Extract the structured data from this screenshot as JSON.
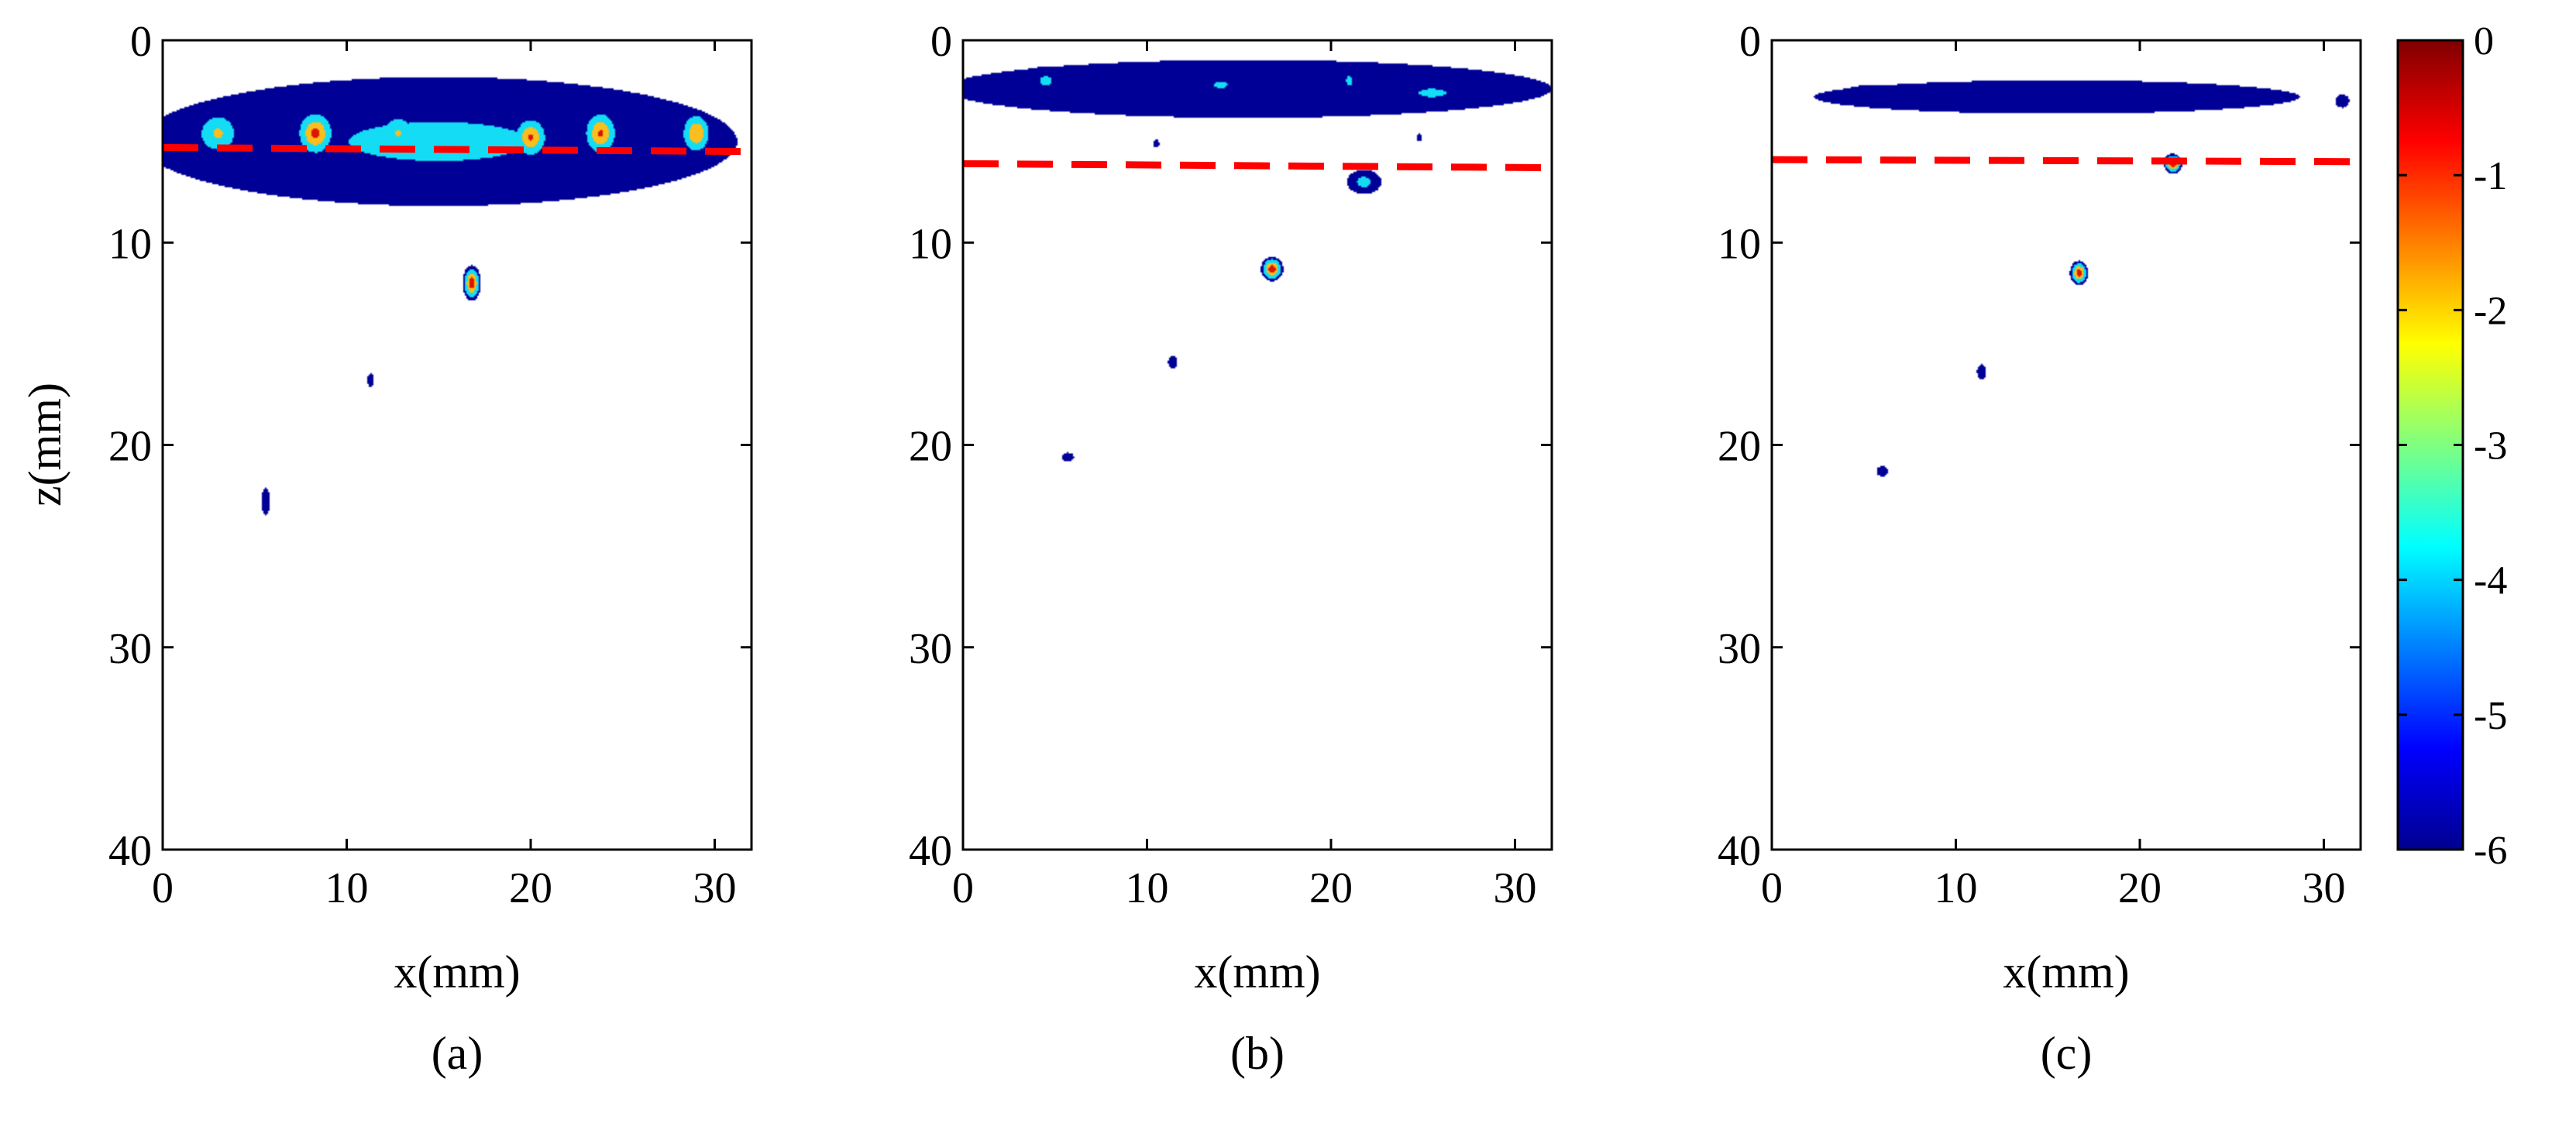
{
  "chart_data": [
    {
      "type": "heatmap",
      "panel": "(a)",
      "xlabel": "x(mm)",
      "ylabel": "z(mm)",
      "xlim": [
        0,
        32
      ],
      "ylim": [
        0,
        40
      ],
      "y_reversed": true,
      "xticks": [
        "0",
        "10",
        "20",
        "30"
      ],
      "yticks": [
        "0",
        "10",
        "20",
        "30",
        "40"
      ],
      "clim": [
        -6,
        0
      ],
      "dashed_line": {
        "color": "#ff0000",
        "x": [
          0,
          32
        ],
        "z": [
          5.3,
          5.5
        ]
      },
      "contour_levels": [
        -6,
        -4,
        -2,
        -1
      ],
      "blobs": [
        {
          "x": 15.0,
          "z": 5.0,
          "wx": 29.5,
          "wz": 5.8,
          "peak": -3.8
        },
        {
          "x": 3.0,
          "z": 4.6,
          "wx": 2.2,
          "wz": 2.0,
          "peak": -1.8
        },
        {
          "x": 8.3,
          "z": 4.6,
          "wx": 2.0,
          "wz": 2.2,
          "peak": -0.8
        },
        {
          "x": 12.8,
          "z": 4.6,
          "wx": 1.8,
          "wz": 1.8,
          "peak": -1.9
        },
        {
          "x": 20.0,
          "z": 4.8,
          "wx": 1.8,
          "wz": 2.0,
          "peak": -0.9
        },
        {
          "x": 23.8,
          "z": 4.6,
          "wx": 1.8,
          "wz": 2.2,
          "peak": -0.9
        },
        {
          "x": 29.0,
          "z": 4.6,
          "wx": 1.6,
          "wz": 2.0,
          "peak": -1.0
        },
        {
          "x": 16.8,
          "z": 12.0,
          "wx": 0.9,
          "wz": 1.6,
          "peak": -0.5
        },
        {
          "x": 11.3,
          "z": 16.8,
          "wx": 0.3,
          "wz": 0.6,
          "peak": -5.5
        },
        {
          "x": 5.6,
          "z": 22.8,
          "wx": 0.45,
          "wz": 1.2,
          "peak": -5.6
        }
      ]
    },
    {
      "type": "heatmap",
      "panel": "(b)",
      "xlabel": "x(mm)",
      "ylabel": "",
      "xlim": [
        0,
        32
      ],
      "ylim": [
        0,
        40
      ],
      "y_reversed": true,
      "xticks": [
        "0",
        "10",
        "20",
        "30"
      ],
      "yticks": [
        "0",
        "10",
        "20",
        "30",
        "40"
      ],
      "clim": [
        -6,
        0
      ],
      "dashed_line": {
        "color": "#ff0000",
        "x": [
          0,
          32
        ],
        "z": [
          6.1,
          6.3
        ]
      },
      "contour_levels": [
        -6,
        -4,
        -2,
        -1
      ],
      "blobs": [
        {
          "x": 15.5,
          "z": 2.4,
          "wx": 30.0,
          "wz": 2.6,
          "peak": -4.8
        },
        {
          "x": 4.5,
          "z": 2.0,
          "wx": 2.0,
          "wz": 1.3,
          "peak": -3.8
        },
        {
          "x": 14.0,
          "z": 2.2,
          "wx": 2.2,
          "wz": 1.0,
          "peak": -3.8
        },
        {
          "x": 21.0,
          "z": 2.0,
          "wx": 1.0,
          "wz": 1.4,
          "peak": -3.8
        },
        {
          "x": 25.5,
          "z": 2.6,
          "wx": 4.5,
          "wz": 1.2,
          "peak": -3.8
        },
        {
          "x": 21.8,
          "z": 7.0,
          "wx": 1.7,
          "wz": 1.1,
          "peak": -3.6
        },
        {
          "x": 16.8,
          "z": 11.3,
          "wx": 1.1,
          "wz": 1.1,
          "peak": -0.5
        },
        {
          "x": 11.4,
          "z": 15.9,
          "wx": 0.45,
          "wz": 0.6,
          "peak": -4.2
        },
        {
          "x": 5.7,
          "z": 20.6,
          "wx": 0.6,
          "wz": 0.4,
          "peak": -5.7
        },
        {
          "x": 10.5,
          "z": 5.1,
          "wx": 0.3,
          "wz": 0.35,
          "peak": -5.7
        },
        {
          "x": 24.8,
          "z": 4.8,
          "wx": 0.3,
          "wz": 0.35,
          "peak": -5.7
        }
      ]
    },
    {
      "type": "heatmap",
      "panel": "(c)",
      "xlabel": "x(mm)",
      "ylabel": "",
      "xlim": [
        0,
        32
      ],
      "ylim": [
        0,
        40
      ],
      "y_reversed": true,
      "xticks": [
        "0",
        "10",
        "20",
        "30"
      ],
      "yticks": [
        "0",
        "10",
        "20",
        "30",
        "40"
      ],
      "clim": [
        -6,
        0
      ],
      "dashed_line": {
        "color": "#ff0000",
        "x": [
          0,
          32
        ],
        "z": [
          5.9,
          6.0
        ]
      },
      "contour_levels": [
        -6,
        -4,
        -2,
        -1
      ],
      "blobs": [
        {
          "x": 15.5,
          "z": 2.8,
          "wx": 24.0,
          "wz": 1.5,
          "peak": -5.3
        },
        {
          "x": 5.5,
          "z": 2.6,
          "wx": 3.0,
          "wz": 0.7,
          "peak": -5.5
        },
        {
          "x": 31.0,
          "z": 3.0,
          "wx": 0.7,
          "wz": 0.6,
          "peak": -5.5
        },
        {
          "x": 21.8,
          "z": 6.1,
          "wx": 0.9,
          "wz": 0.9,
          "peak": -0.5
        },
        {
          "x": 16.7,
          "z": 11.5,
          "wx": 0.9,
          "wz": 1.1,
          "peak": -0.5
        },
        {
          "x": 11.4,
          "z": 16.4,
          "wx": 0.45,
          "wz": 0.7,
          "peak": -4.2
        },
        {
          "x": 6.0,
          "z": 21.3,
          "wx": 0.55,
          "wz": 0.45,
          "peak": -5.7
        }
      ]
    }
  ],
  "colorbar": {
    "colormap": "jet",
    "range": [
      -6,
      0
    ],
    "ticks": [
      "0",
      "-1",
      "-2",
      "-3",
      "-4",
      "-5",
      "-6"
    ],
    "tick_values": [
      0,
      -1,
      -2,
      -3,
      -4,
      -5,
      -6
    ]
  }
}
